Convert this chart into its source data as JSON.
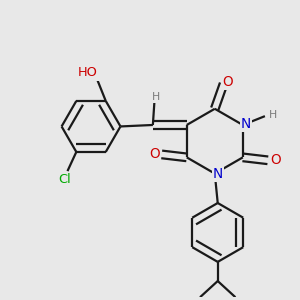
{
  "bg_color": "#e8e8e8",
  "atom_colors": {
    "C": "#000000",
    "H": "#7a7a7a",
    "O": "#cc0000",
    "N": "#0000cc",
    "Cl": "#00aa00"
  },
  "bond_color": "#1a1a1a",
  "bond_width": 1.6,
  "dbo": 0.018
}
